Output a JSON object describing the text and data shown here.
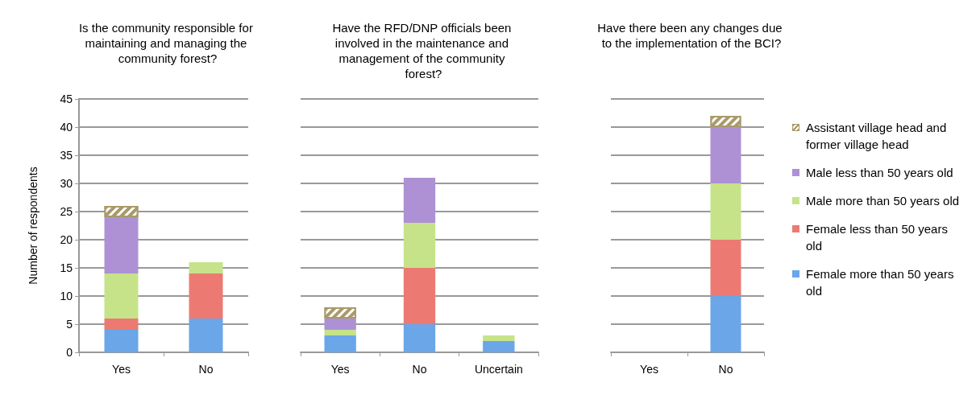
{
  "chart_data": [
    {
      "type": "bar",
      "title": "Is the community responsible for maintaining and managing the community forest?",
      "ylabel": "Number of respondents",
      "categories": [
        "Yes",
        "No"
      ],
      "stacked": true,
      "ylim": [
        0,
        45
      ],
      "yticks": [
        0,
        5,
        10,
        15,
        20,
        25,
        30,
        35,
        40,
        45
      ],
      "grid": "y",
      "series": [
        {
          "color": "#6aa6e8",
          "values": [
            4,
            6
          ]
        },
        {
          "color": "#ec7a72",
          "values": [
            2,
            8
          ]
        },
        {
          "color": "#c6e38a",
          "values": [
            8,
            2
          ]
        },
        {
          "color": "#ad91d4",
          "values": [
            10,
            0
          ]
        },
        {
          "color": "#a89a6a",
          "values": [
            2,
            0
          ]
        }
      ]
    },
    {
      "type": "bar",
      "title": "Have the RFD/DNP officials been involved in the maintenance and management of the community forest?",
      "categories": [
        "Yes",
        "No",
        "Uncertain"
      ],
      "stacked": true,
      "ylim": [
        0,
        45
      ],
      "yticks": [
        0,
        5,
        10,
        15,
        20,
        25,
        30,
        35,
        40,
        45
      ],
      "grid": "y",
      "tick_labels": "x",
      "series": [
        {
          "color": "#6aa6e8",
          "values": [
            3,
            5,
            2
          ]
        },
        {
          "color": "#ec7a72",
          "values": [
            0,
            10,
            0
          ]
        },
        {
          "color": "#c6e38a",
          "values": [
            1,
            8,
            1
          ]
        },
        {
          "color": "#ad91d4",
          "values": [
            2,
            8,
            0
          ]
        },
        {
          "color": "#a89a6a",
          "values": [
            2,
            0,
            0
          ]
        }
      ]
    },
    {
      "type": "bar",
      "title": "Have there been any changes due to the implementation of the BCI?",
      "categories": [
        "Yes",
        "No"
      ],
      "stacked": true,
      "ylim": [
        0,
        45
      ],
      "yticks": [
        0,
        5,
        10,
        15,
        20,
        25,
        30,
        35,
        40,
        45
      ],
      "grid": "y",
      "tick_labels": "x",
      "legend": "right",
      "series": [
        {
          "name": "Female more than 50 years old",
          "color": "#6aa6e8",
          "values": [
            0,
            10
          ]
        },
        {
          "name": "Female less than 50 years old",
          "color": "#ec7a72",
          "values": [
            0,
            10
          ]
        },
        {
          "name": "Male more than 50 years old",
          "color": "#c6e38a",
          "values": [
            0,
            10
          ]
        },
        {
          "name": "Male less than 50 years old",
          "color": "#ad91d4",
          "values": [
            0,
            10
          ]
        },
        {
          "name": "Assistant village head and former village head",
          "color": "#a89a6a",
          "values": [
            0,
            2
          ]
        }
      ]
    }
  ]
}
